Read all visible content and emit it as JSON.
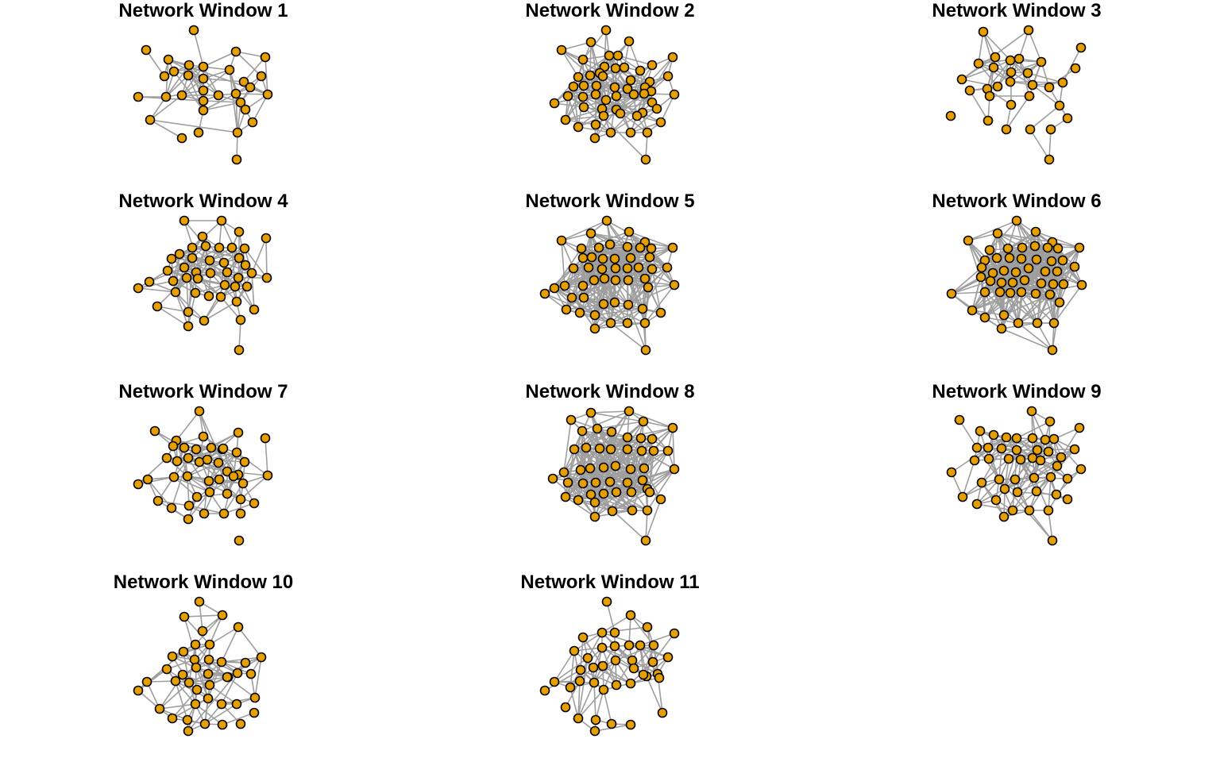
{
  "colors": {
    "node_fill": "#E69F00",
    "node_stroke": "#000000",
    "edge": "#9E9E9E",
    "background": "#FFFFFF"
  },
  "panels": [
    {
      "title": "Network Window 1"
    },
    {
      "title": "Network Window 2"
    },
    {
      "title": "Network Window 3"
    },
    {
      "title": "Network Window 4"
    },
    {
      "title": "Network Window 5"
    },
    {
      "title": "Network Window 6"
    },
    {
      "title": "Network Window 7"
    },
    {
      "title": "Network Window 8"
    },
    {
      "title": "Network Window 9"
    },
    {
      "title": "Network Window 10"
    },
    {
      "title": "Network Window 11"
    }
  ]
}
